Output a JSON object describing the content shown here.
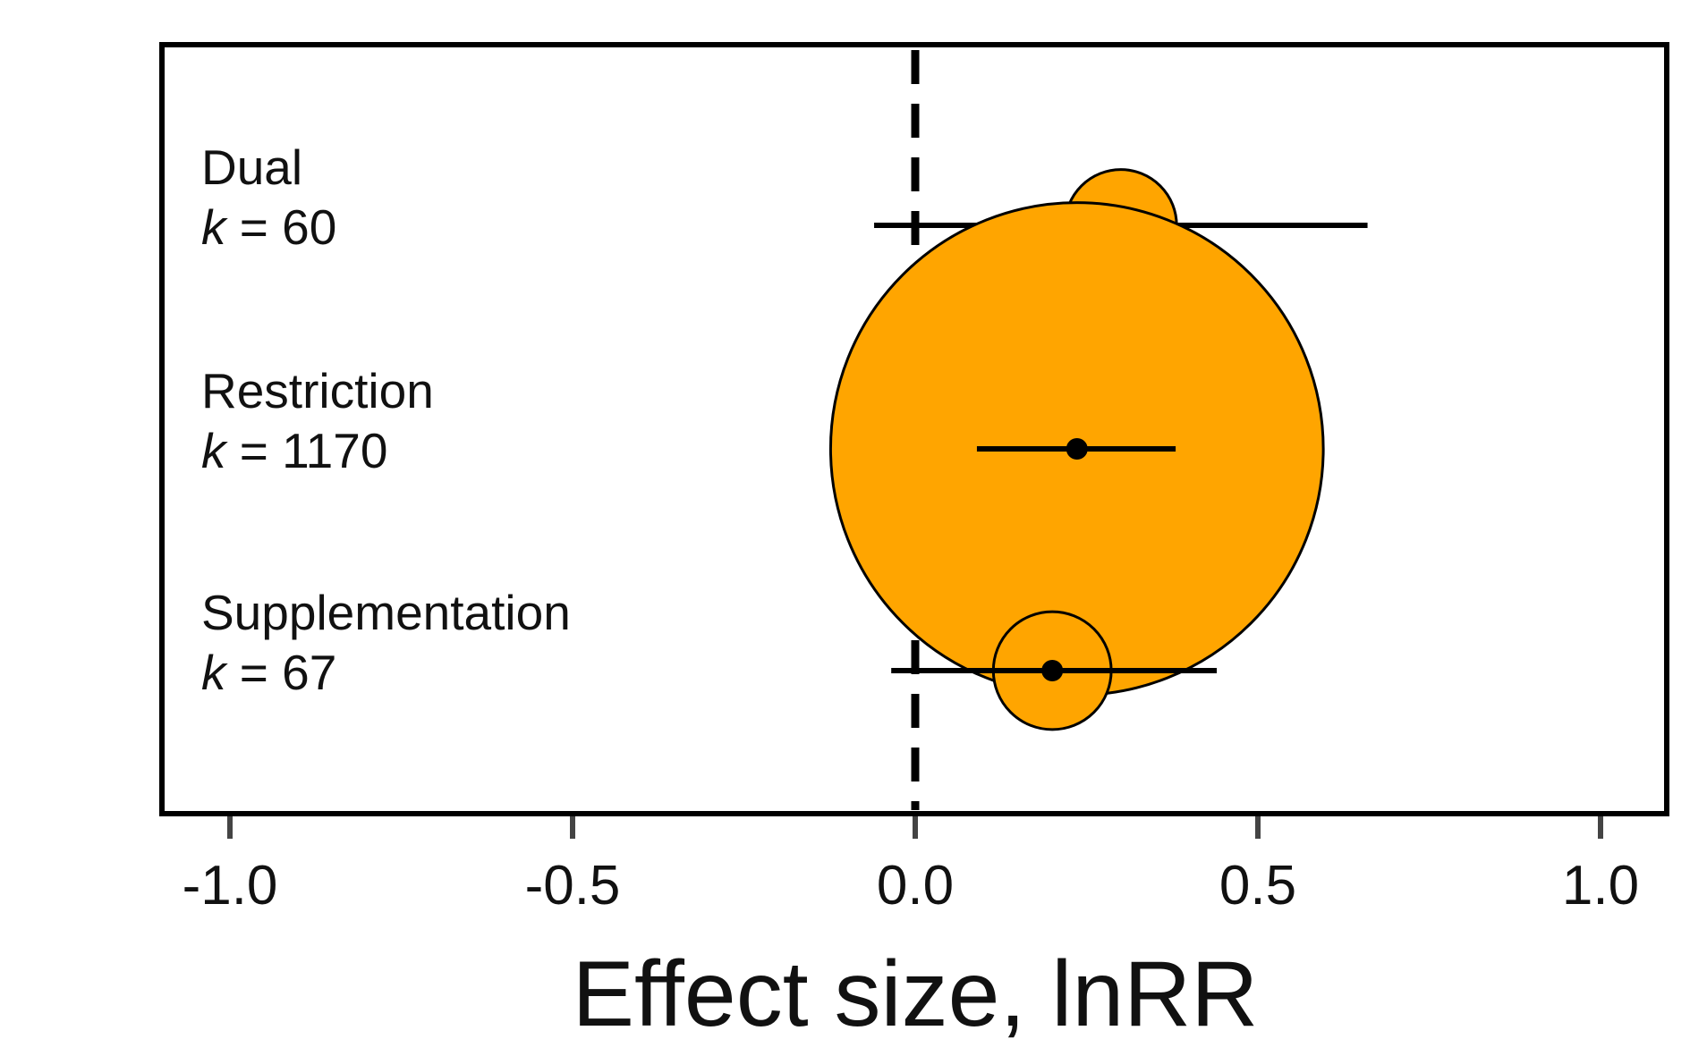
{
  "chart_data": {
    "type": "forest",
    "xlabel": "Effect size, lnRR",
    "xlim": [
      -1.1,
      1.1
    ],
    "xticks": [
      -1.0,
      -0.5,
      0.0,
      0.5,
      1.0
    ],
    "xtick_labels": [
      "-1.0",
      "-0.5",
      "0.0",
      "0.5",
      "1.0"
    ],
    "reference_line": {
      "x": 0.0,
      "style": "dashed"
    },
    "marker_color": "#FFA500",
    "line_color": "#000000",
    "grid": false,
    "rows": [
      {
        "name": "Dual",
        "k_symbol": "k",
        "k_text": " = 60",
        "k": 60,
        "estimate": 0.3,
        "ci_low": -0.06,
        "ci_high": 0.66
      },
      {
        "name": "Restriction",
        "k_symbol": "k",
        "k_text": " = 1170",
        "k": 1170,
        "estimate": 0.236,
        "ci_low": 0.09,
        "ci_high": 0.38
      },
      {
        "name": "Supplementation",
        "k_symbol": "k",
        "k_text": " = 67",
        "k": 67,
        "estimate": 0.2,
        "ci_low": -0.035,
        "ci_high": 0.44
      }
    ]
  }
}
